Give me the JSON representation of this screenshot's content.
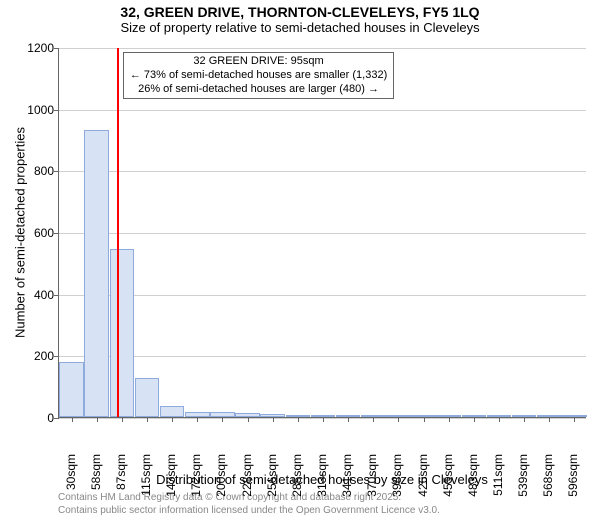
{
  "title_line1": "32, GREEN DRIVE, THORNTON-CLEVELEYS, FY5 1LQ",
  "title_line2": "Size of property relative to semi-detached houses in Cleveleys",
  "title1_fontsize": 14,
  "title2_fontsize": 13,
  "ylabel": "Number of semi-detached properties",
  "xlabel": "Distribution of semi-detached houses by size in Cleveleys",
  "axis_label_fontsize": 13,
  "tick_fontsize": 12,
  "background_color": "#ffffff",
  "grid_color": "#d0d0d0",
  "axis_color": "#666666",
  "chart": {
    "type": "histogram",
    "ylim": [
      0,
      1200
    ],
    "yticks": [
      0,
      200,
      400,
      600,
      800,
      1000,
      1200
    ],
    "xtick_labels": [
      "30sqm",
      "58sqm",
      "87sqm",
      "115sqm",
      "143sqm",
      "172sqm",
      "200sqm",
      "228sqm",
      "256sqm",
      "285sqm",
      "313sqm",
      "341sqm",
      "370sqm",
      "398sqm",
      "426sqm",
      "455sqm",
      "483sqm",
      "511sqm",
      "539sqm",
      "568sqm",
      "596sqm"
    ],
    "bar_values": [
      180,
      930,
      545,
      125,
      35,
      15,
      15,
      12,
      10,
      8,
      5,
      5,
      3,
      3,
      3,
      2,
      2,
      2,
      2,
      2,
      1
    ],
    "bar_fill": "#d7e2f4",
    "bar_stroke": "#8faadc",
    "bar_width": 0.98,
    "indicator_value_index": 2.3,
    "indicator_color": "#ff0000"
  },
  "annotation": {
    "line1": "32 GREEN DRIVE: 95sqm",
    "line2": "← 73% of semi-detached houses are smaller (1,332)",
    "line3": "26% of semi-detached houses are larger (480) →",
    "fontsize": 11,
    "border_color": "#666666"
  },
  "attribution": {
    "line1": "Contains HM Land Registry data © Crown copyright and database right 2025.",
    "line2": "Contains public sector information licensed under the Open Government Licence v3.0.",
    "fontsize": 10,
    "color": "#888888"
  }
}
